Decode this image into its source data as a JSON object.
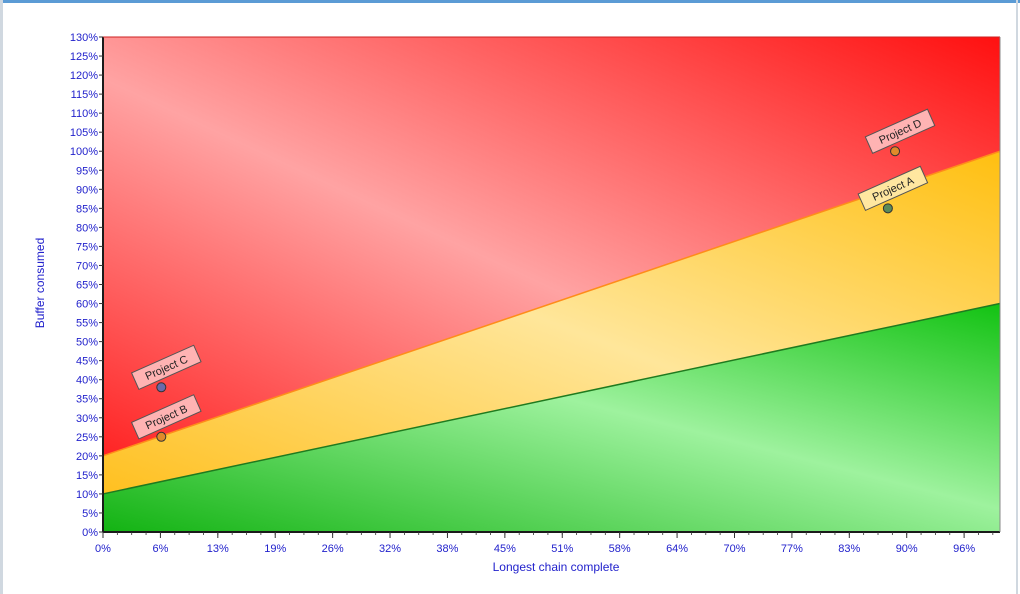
{
  "chart_data": {
    "type": "area",
    "xlabel": "Longest chain complete",
    "ylabel": "Buffer consumed",
    "xlim": [
      0,
      100
    ],
    "ylim": [
      0,
      130
    ],
    "x_ticks": [
      "0%",
      "6%",
      "13%",
      "19%",
      "26%",
      "32%",
      "38%",
      "45%",
      "51%",
      "58%",
      "64%",
      "70%",
      "77%",
      "83%",
      "90%",
      "96%"
    ],
    "x_tick_values": [
      0,
      6.4,
      12.8,
      19.2,
      25.6,
      32,
      38.4,
      44.8,
      51.2,
      57.6,
      64,
      70.4,
      76.8,
      83.2,
      89.6,
      96
    ],
    "y_ticks": [
      "0%",
      "5%",
      "10%",
      "15%",
      "20%",
      "25%",
      "30%",
      "35%",
      "40%",
      "45%",
      "50%",
      "55%",
      "60%",
      "65%",
      "70%",
      "75%",
      "80%",
      "85%",
      "90%",
      "95%",
      "100%",
      "105%",
      "110%",
      "115%",
      "120%",
      "125%",
      "130%"
    ],
    "y_tick_values": [
      0,
      5,
      10,
      15,
      20,
      25,
      30,
      35,
      40,
      45,
      50,
      55,
      60,
      65,
      70,
      75,
      80,
      85,
      90,
      95,
      100,
      105,
      110,
      115,
      120,
      125,
      130
    ],
    "zones": [
      {
        "name": "green",
        "color": "#22c522",
        "lower": [
          [
            0,
            0
          ],
          [
            100,
            0
          ]
        ],
        "upper": [
          [
            0,
            10
          ],
          [
            100,
            60
          ]
        ]
      },
      {
        "name": "yellow",
        "color": "#ffc61a",
        "lower": [
          [
            0,
            10
          ],
          [
            100,
            60
          ]
        ],
        "upper": [
          [
            0,
            20
          ],
          [
            100,
            100
          ]
        ]
      },
      {
        "name": "red",
        "color": "#ff2020",
        "lower": [
          [
            0,
            20
          ],
          [
            100,
            100
          ]
        ],
        "upper": [
          [
            0,
            130
          ],
          [
            100,
            130
          ]
        ]
      }
    ],
    "points": [
      {
        "label": "Project C",
        "x": 6.5,
        "y": 38,
        "color": "#6a6aaa",
        "tag": "red"
      },
      {
        "label": "Project B",
        "x": 6.5,
        "y": 25,
        "color": "#e08a2a",
        "tag": "red"
      },
      {
        "label": "Project D",
        "x": 88.3,
        "y": 100,
        "color": "#e08a2a",
        "tag": "red"
      },
      {
        "label": "Project A",
        "x": 87.5,
        "y": 85,
        "color": "#5a8a5a",
        "tag": "yellow"
      }
    ]
  }
}
